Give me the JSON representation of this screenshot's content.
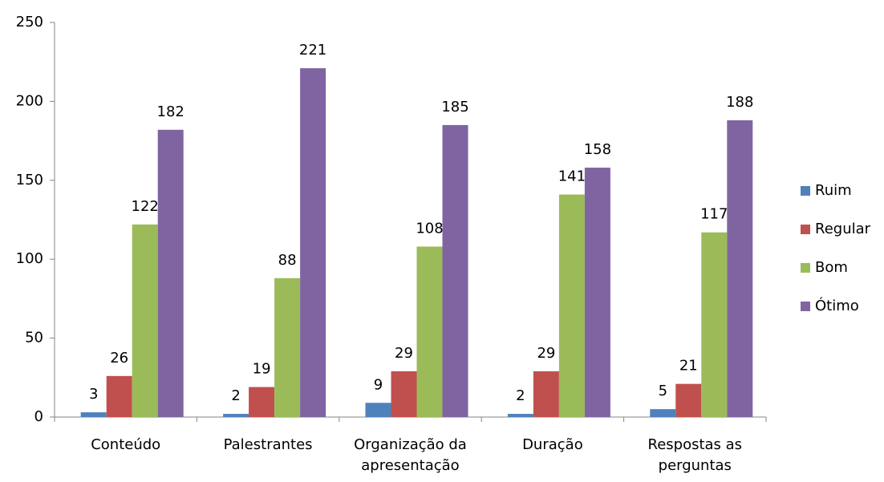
{
  "chart_data": {
    "type": "bar",
    "categories": [
      "Conteúdo",
      "Palestrantes",
      "Organização da apresentação",
      "Duração",
      "Respostas as perguntas"
    ],
    "series": [
      {
        "name": "Ruim",
        "color": "#4f81bd",
        "values": [
          3,
          2,
          9,
          2,
          5
        ]
      },
      {
        "name": "Regular",
        "color": "#c0504d",
        "values": [
          26,
          19,
          29,
          29,
          21
        ]
      },
      {
        "name": "Bom",
        "color": "#9bbb59",
        "values": [
          122,
          88,
          108,
          141,
          117
        ]
      },
      {
        "name": "Ótimo",
        "color": "#8064a2",
        "values": [
          182,
          221,
          185,
          158,
          188
        ]
      }
    ],
    "ylim": [
      0,
      250
    ],
    "yticks": [
      0,
      50,
      100,
      150,
      200,
      250
    ],
    "grid": false,
    "legend": "right"
  }
}
